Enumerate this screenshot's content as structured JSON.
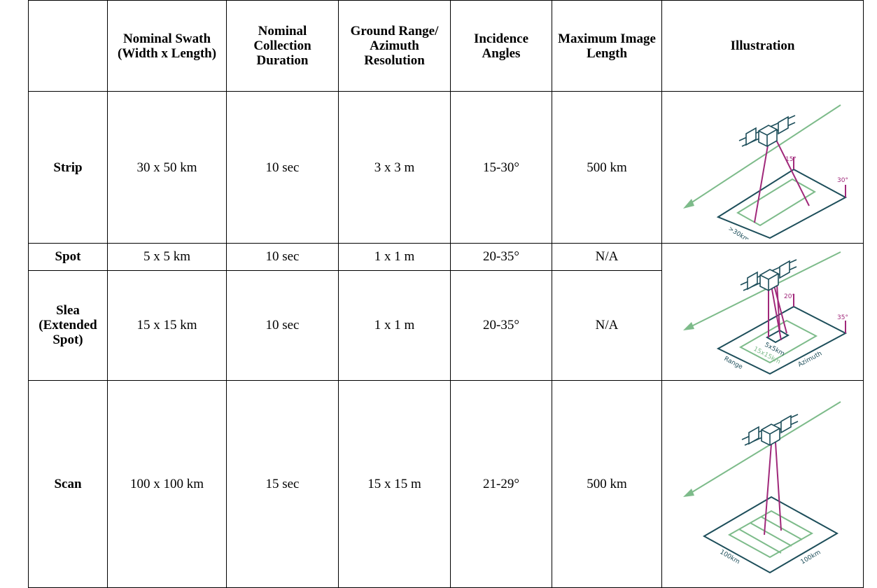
{
  "table": {
    "header": [
      "Nominal Swath (Width x Length)",
      "Nominal Collection Duration",
      "Ground Range/ Azimuth Resolution",
      "Incidence Angles",
      "Maximum Image Length",
      "Illustration"
    ],
    "rows": [
      {
        "label": "Strip",
        "cells": [
          "30 x 50 km",
          "10 sec",
          "3 x 3 m",
          "15-30°",
          "500 km"
        ]
      },
      {
        "label": "Spot",
        "cells": [
          "5 x 5 km",
          "10 sec",
          "1 x 1 m",
          "20-35°",
          "N/A"
        ]
      },
      {
        "label": "Slea (Extended Spot)",
        "cells": [
          "15 x 15 km",
          "10 sec",
          "1 x 1 m",
          "20-35°",
          "N/A"
        ]
      },
      {
        "label": "Scan",
        "cells": [
          "100 x 100 km",
          "15 sec",
          "15 x 15 m",
          "21-29°",
          "500 km"
        ]
      }
    ],
    "illustrations": [
      {
        "labels": [
          "15°",
          "30°",
          ">30km"
        ]
      },
      {
        "labels": [
          "20°",
          "35°",
          "5x5km",
          "15x15km",
          "Azimuth",
          "Range"
        ]
      },
      {
        "labels": [
          "100km",
          "100km"
        ]
      }
    ]
  }
}
